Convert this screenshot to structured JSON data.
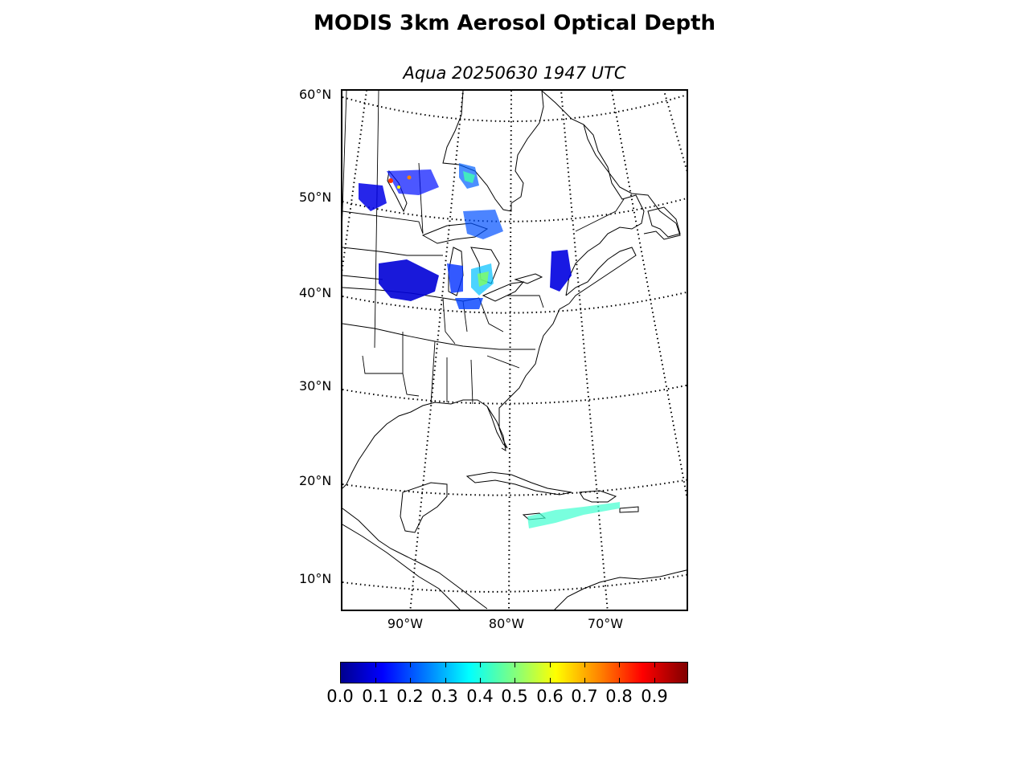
{
  "title": "MODIS 3km Aerosol Optical Depth",
  "subtitle": "Aqua 20250630 1947 UTC",
  "map": {
    "lat_labels": [
      "60°N",
      "50°N",
      "40°N",
      "30°N",
      "20°N",
      "10°N"
    ],
    "lon_labels": [
      "90°W",
      "80°W",
      "70°W"
    ],
    "graticule_style": "dotted",
    "coastline_color": "#000000"
  },
  "colorbar": {
    "colormap": "jet",
    "range": [
      0.0,
      1.0
    ],
    "tick_labels": [
      "0.0",
      "0.1",
      "0.2",
      "0.3",
      "0.4",
      "0.5",
      "0.6",
      "0.7",
      "0.8",
      "0.9"
    ]
  }
}
